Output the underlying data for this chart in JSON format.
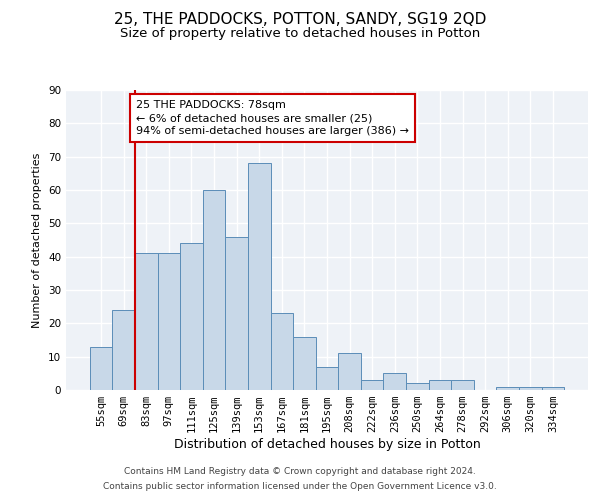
{
  "title1": "25, THE PADDOCKS, POTTON, SANDY, SG19 2QD",
  "title2": "Size of property relative to detached houses in Potton",
  "xlabel": "Distribution of detached houses by size in Potton",
  "ylabel": "Number of detached properties",
  "categories": [
    "55sqm",
    "69sqm",
    "83sqm",
    "97sqm",
    "111sqm",
    "125sqm",
    "139sqm",
    "153sqm",
    "167sqm",
    "181sqm",
    "195sqm",
    "208sqm",
    "222sqm",
    "236sqm",
    "250sqm",
    "264sqm",
    "278sqm",
    "292sqm",
    "306sqm",
    "320sqm",
    "334sqm"
  ],
  "values": [
    13,
    24,
    41,
    41,
    44,
    60,
    46,
    68,
    23,
    16,
    7,
    11,
    3,
    5,
    2,
    3,
    3,
    0,
    1,
    1,
    1
  ],
  "bar_color": "#c8d8e8",
  "bar_edge_color": "#5b8db8",
  "bar_width": 1.0,
  "ylim": [
    0,
    90
  ],
  "yticks": [
    0,
    10,
    20,
    30,
    40,
    50,
    60,
    70,
    80,
    90
  ],
  "vline_x": 1.5,
  "vline_color": "#cc0000",
  "annotation_text": "25 THE PADDOCKS: 78sqm\n← 6% of detached houses are smaller (25)\n94% of semi-detached houses are larger (386) →",
  "annotation_box_color": "#ffffff",
  "annotation_box_edge_color": "#cc0000",
  "footer1": "Contains HM Land Registry data © Crown copyright and database right 2024.",
  "footer2": "Contains public sector information licensed under the Open Government Licence v3.0.",
  "bg_color": "#eef2f7",
  "grid_color": "#ffffff",
  "title1_fontsize": 11,
  "title2_fontsize": 9.5,
  "xlabel_fontsize": 9,
  "ylabel_fontsize": 8,
  "tick_fontsize": 7.5,
  "footer_fontsize": 6.5,
  "annot_fontsize": 8
}
